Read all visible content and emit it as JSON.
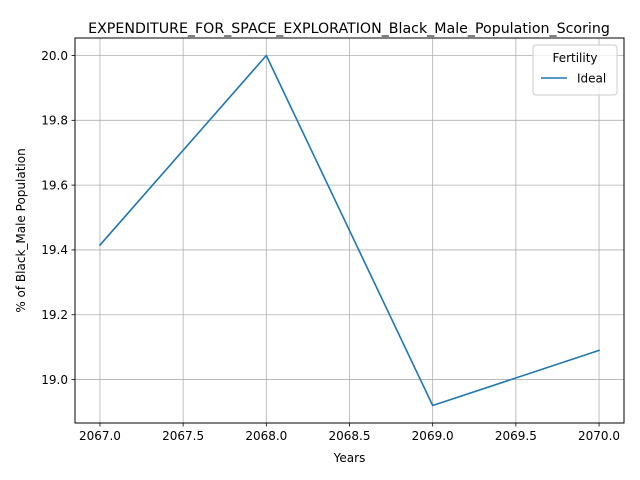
{
  "chart_data": {
    "type": "line",
    "title": "EXPENDITURE_FOR_SPACE_EXPLORATION_Black_Male_Population_Scoring",
    "xlabel": "Years",
    "ylabel": "% of Black_Male Population",
    "x": [
      2067,
      2068,
      2069,
      2070
    ],
    "series": [
      {
        "name": "Ideal",
        "color": "#1f77b4",
        "values": [
          19.415,
          20.0,
          18.92,
          19.09
        ]
      }
    ],
    "xlim": [
      2066.85,
      2070.15
    ],
    "ylim": [
      18.866,
      20.054
    ],
    "xticks": [
      "2067.0",
      "2067.5",
      "2068.0",
      "2068.5",
      "2069.0",
      "2069.5",
      "2070.0"
    ],
    "yticks": [
      "19.0",
      "19.2",
      "19.4",
      "19.6",
      "19.8",
      "20.0"
    ],
    "grid": true,
    "legend": {
      "title": "Fertility",
      "position": "top-right"
    }
  }
}
